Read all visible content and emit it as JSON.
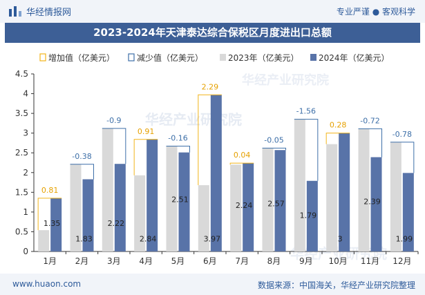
{
  "header": {
    "brand_name": "华经情报网",
    "tagline": "专业严谨 ● 客观科学",
    "logo_icon": "bar-logo-icon"
  },
  "title": "2023-2024年天津泰达综合保税区月度进出口总额",
  "footer": {
    "url": "www.huaon.com",
    "source": "数据来源：中国海关，华经产业研究院整理"
  },
  "watermark": "华经产业研究院",
  "colors": {
    "increase": "#f2b419",
    "decrease": "#3d6fa8",
    "y2023": "#d9d9d9",
    "y2024": "#5873a8",
    "brand": "#2d5a9a"
  },
  "chart_data": {
    "type": "bar",
    "title": "2023-2024年天津泰达综合保税区月度进出口总额",
    "categories": [
      "1月",
      "2月",
      "3月",
      "4月",
      "5月",
      "6月",
      "7月",
      "8月",
      "9月",
      "10月",
      "11月",
      "12月"
    ],
    "series": [
      {
        "name": "2023年（亿美元）",
        "values": [
          0.54,
          2.21,
          3.12,
          1.93,
          2.67,
          1.68,
          2.2,
          2.62,
          3.35,
          2.72,
          3.11,
          2.77
        ]
      },
      {
        "name": "2024年（亿美元）",
        "values": [
          1.35,
          1.83,
          2.22,
          2.84,
          2.51,
          3.97,
          2.24,
          2.57,
          1.79,
          3.0,
          2.39,
          1.99
        ]
      }
    ],
    "value_labels": [
      "1.35",
      "1.83",
      "2.22",
      "2.84",
      "2.51",
      "3.97",
      "2.24",
      "2.57",
      "1.79",
      "3",
      "2.39",
      "1.99"
    ],
    "change_labels": [
      "0.81",
      "-0.38",
      "-0.9",
      "0.91",
      "-0.16",
      "2.29",
      "0.04",
      "-0.05",
      "-1.56",
      "0.28",
      "-0.72",
      "-0.78"
    ],
    "legend": [
      "增加值（亿美元）",
      "减少值（亿美元）",
      "2023年（亿美元）",
      "2024年（亿美元）"
    ],
    "legend_position": "top",
    "ylim": [
      0,
      4.5
    ],
    "yticks": [
      "0",
      "0.5",
      "1",
      "1.5",
      "2",
      "2.5",
      "3",
      "3.5",
      "4",
      "4.5"
    ],
    "xlabel": "",
    "ylabel": "",
    "grid": false
  }
}
